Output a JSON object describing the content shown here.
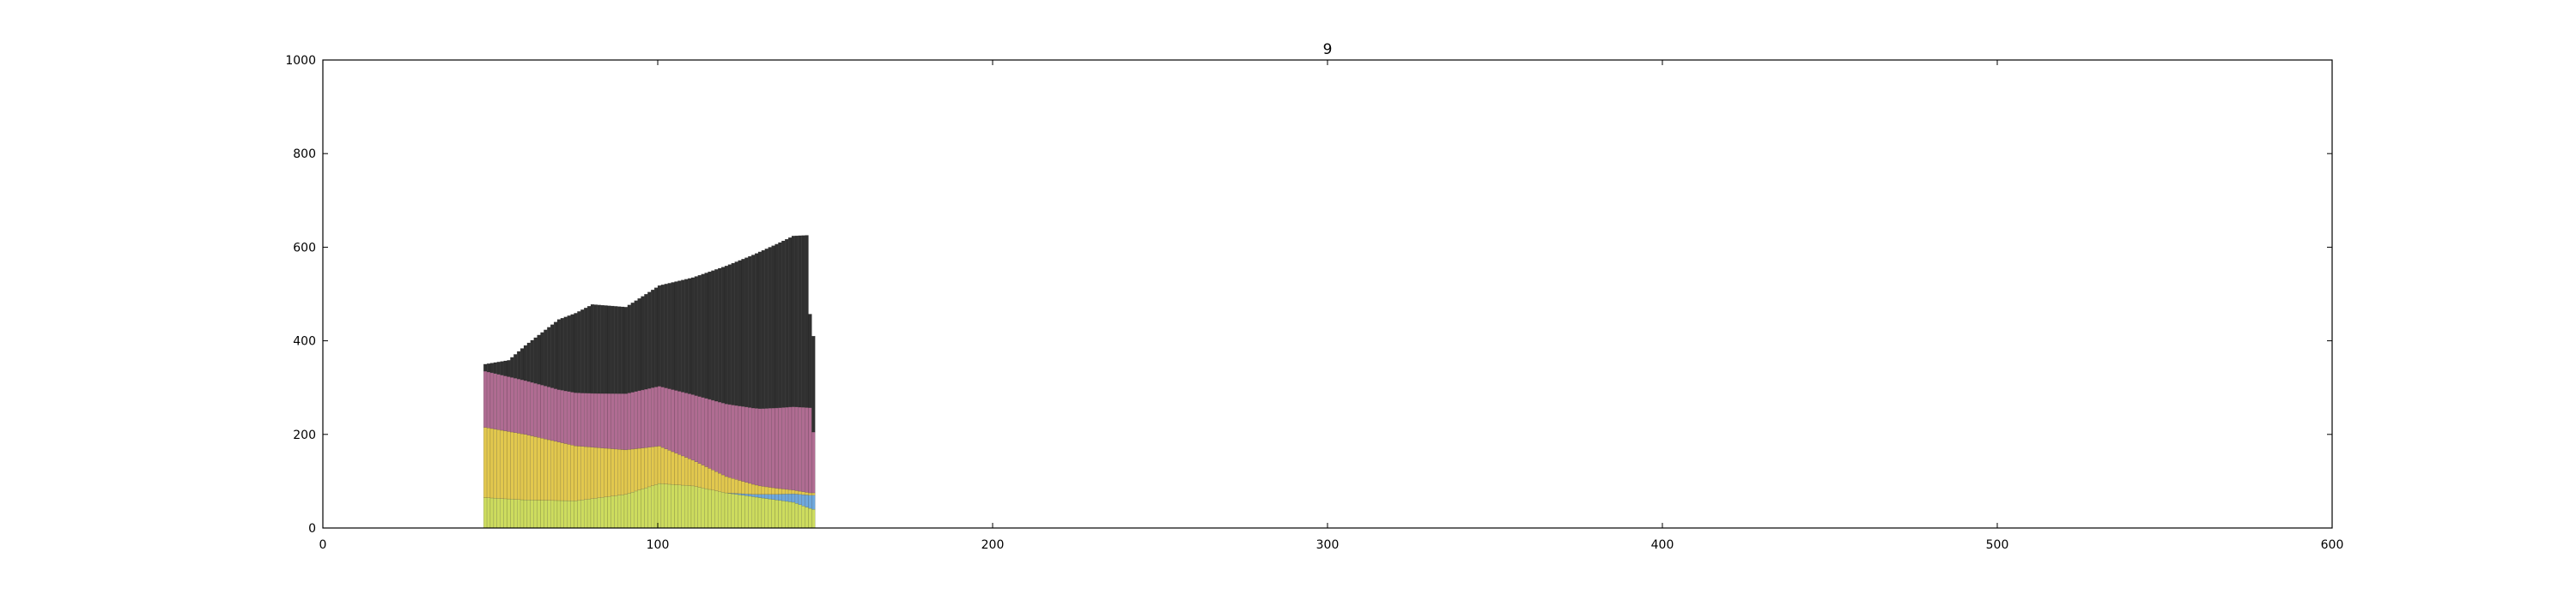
{
  "chart_data": {
    "type": "bar",
    "stacked": true,
    "title": "9",
    "xlabel": "",
    "ylabel": "",
    "xlim": [
      0,
      600
    ],
    "ylim": [
      0,
      1000
    ],
    "xticks": [
      0,
      100,
      200,
      300,
      400,
      500,
      600
    ],
    "yticks": [
      0,
      200,
      400,
      600,
      800,
      1000
    ],
    "grid": false,
    "legend": "none",
    "bar_width": 1,
    "x_start": 48,
    "x_end": 146,
    "series": [
      {
        "color": "#cddc5e",
        "keypoints": [
          [
            48,
            65
          ],
          [
            60,
            60
          ],
          [
            75,
            58
          ],
          [
            90,
            72
          ],
          [
            100,
            95
          ],
          [
            110,
            90
          ],
          [
            120,
            75
          ],
          [
            130,
            65
          ],
          [
            140,
            55
          ],
          [
            145,
            42
          ],
          [
            146,
            40
          ]
        ]
      },
      {
        "color": "#6fa8dc",
        "keypoints": [
          [
            48,
            0
          ],
          [
            120,
            0
          ],
          [
            128,
            5
          ],
          [
            135,
            12
          ],
          [
            140,
            18
          ],
          [
            145,
            28
          ],
          [
            146,
            30
          ]
        ]
      },
      {
        "color": "#e2c84e",
        "keypoints": [
          [
            48,
            150
          ],
          [
            60,
            140
          ],
          [
            70,
            125
          ],
          [
            80,
            110
          ],
          [
            90,
            95
          ],
          [
            100,
            80
          ],
          [
            110,
            55
          ],
          [
            120,
            35
          ],
          [
            130,
            18
          ],
          [
            140,
            8
          ],
          [
            145,
            5
          ],
          [
            146,
            5
          ]
        ]
      },
      {
        "color": "#b06c92",
        "keypoints": [
          [
            48,
            120
          ],
          [
            60,
            115
          ],
          [
            70,
            112
          ],
          [
            80,
            115
          ],
          [
            90,
            120
          ],
          [
            100,
            128
          ],
          [
            110,
            140
          ],
          [
            120,
            155
          ],
          [
            130,
            165
          ],
          [
            140,
            178
          ],
          [
            145,
            182
          ],
          [
            146,
            130
          ]
        ]
      },
      {
        "color": "#303030",
        "keypoints": [
          [
            48,
            15
          ],
          [
            55,
            35
          ],
          [
            60,
            75
          ],
          [
            70,
            150
          ],
          [
            80,
            190
          ],
          [
            90,
            185
          ],
          [
            100,
            215
          ],
          [
            110,
            250
          ],
          [
            120,
            295
          ],
          [
            130,
            335
          ],
          [
            140,
            365
          ],
          [
            144,
            368
          ],
          [
            145,
            200
          ],
          [
            146,
            205
          ]
        ]
      }
    ]
  }
}
